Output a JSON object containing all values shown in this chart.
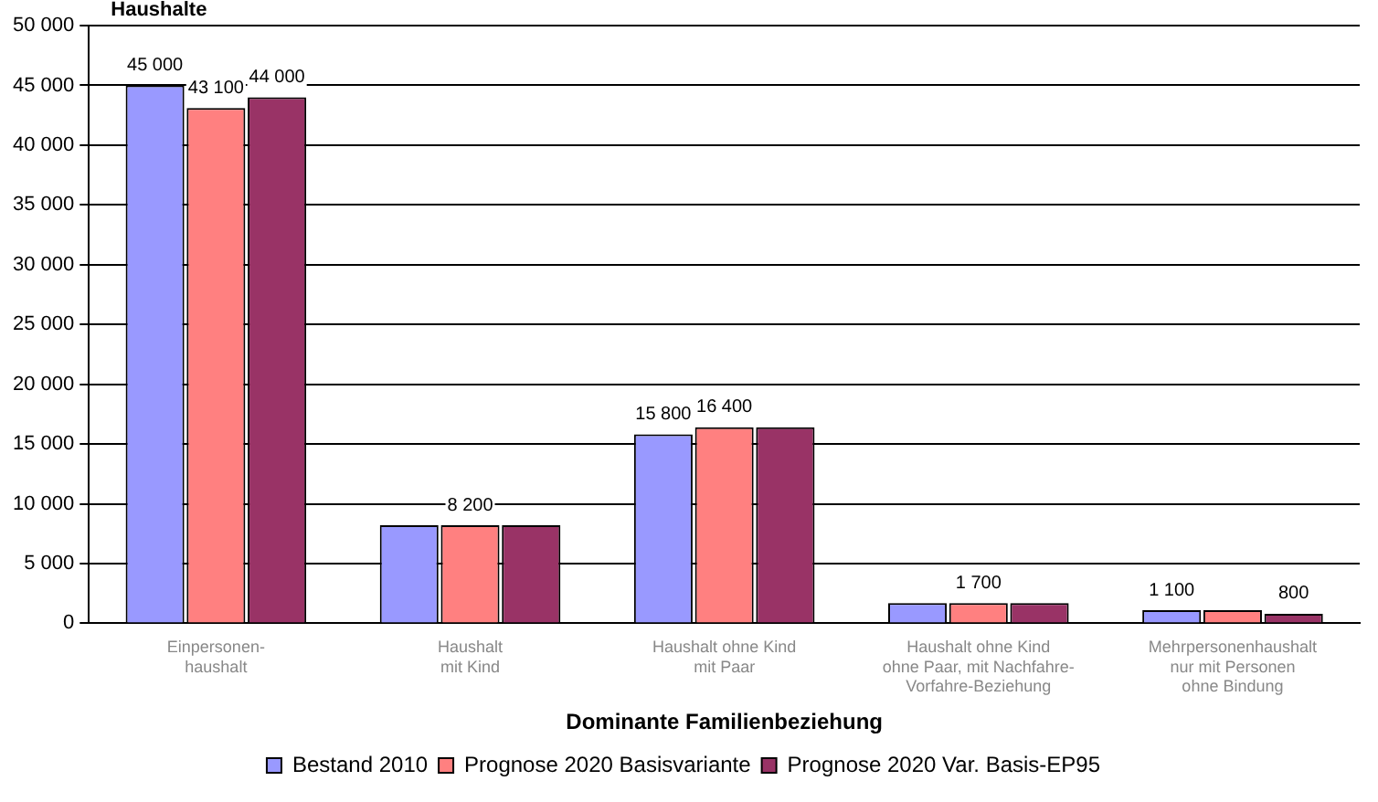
{
  "chart_data": {
    "type": "bar",
    "ylabel": "Haushalte",
    "xlabel": "Dominante Familienbeziehung",
    "categories": [
      "Einpersonen-\nhaushalt",
      "Haushalt\nmit Kind",
      "Haushalt ohne Kind\nmit Paar",
      "Haushalt ohne Kind\nohne Paar, mit Nachfahre-\nVorfahre-Beziehung",
      "Mehrpersonenhaushalt\nnur mit Personen\nohne Bindung"
    ],
    "series": [
      {
        "name": "Bestand 2010",
        "color": "#9999ff",
        "values": [
          45000,
          8200,
          15800,
          1700,
          1100
        ],
        "value_labels": [
          "45 000",
          null,
          "15 800",
          null,
          "1 100"
        ]
      },
      {
        "name": "Prognose 2020 Basisvariante",
        "color": "#ff8080",
        "values": [
          43100,
          8200,
          16400,
          1700,
          1100
        ],
        "value_labels": [
          "43 100",
          "8 200",
          "16 400",
          "1 700",
          null
        ]
      },
      {
        "name": "Prognose 2020 Var. Basis-EP95",
        "color": "#993366",
        "values": [
          44000,
          8200,
          16400,
          1700,
          800
        ],
        "value_labels": [
          "44 000",
          null,
          null,
          null,
          "800"
        ]
      }
    ],
    "ylim": [
      0,
      50000
    ],
    "yticks": [
      {
        "value": 0,
        "label": "0"
      },
      {
        "value": 5000,
        "label": "5 000"
      },
      {
        "value": 10000,
        "label": "10 000"
      },
      {
        "value": 15000,
        "label": "15 000"
      },
      {
        "value": 20000,
        "label": "20 000"
      },
      {
        "value": 25000,
        "label": "25 000"
      },
      {
        "value": 30000,
        "label": "30 000"
      },
      {
        "value": 35000,
        "label": "35 000"
      },
      {
        "value": 40000,
        "label": "40 000"
      },
      {
        "value": 45000,
        "label": "45 000"
      },
      {
        "value": 50000,
        "label": "50 000"
      }
    ],
    "grid": "y",
    "legend": "bottom"
  }
}
